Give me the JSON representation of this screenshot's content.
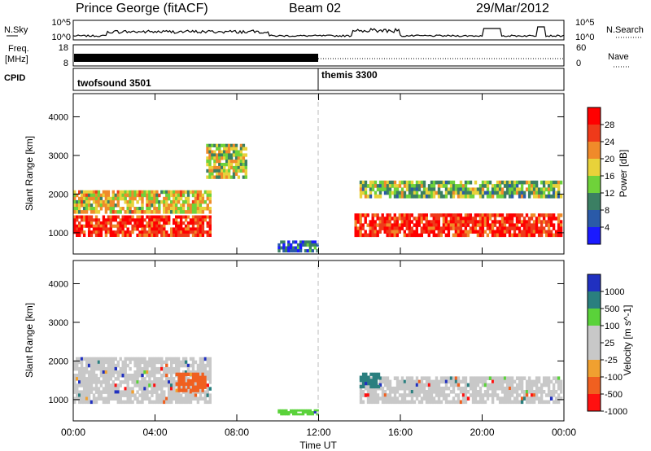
{
  "header": {
    "station": "Prince George (fitACF)",
    "beam": "Beam 02",
    "date": "29/Mar/2012"
  },
  "noise_panel": {
    "left_label": "N.Sky",
    "right_label": "N.Search",
    "left_ticks": [
      "10^5",
      "10^0"
    ],
    "right_ticks": [
      "10^5",
      "10^0"
    ]
  },
  "freq_panel": {
    "left_label_1": "Freq.",
    "left_label_2": "[MHz]",
    "right_label": "Nave",
    "left_ticks": [
      "18",
      "8"
    ],
    "right_ticks": [
      "60",
      "0"
    ]
  },
  "cpid_panel": {
    "label": "CPID",
    "modes": [
      {
        "name": "twofsound 3501",
        "start": "00:00"
      },
      {
        "name": "themis 3300",
        "start": "12:00"
      }
    ]
  },
  "chart_data": [
    {
      "type": "heatmap",
      "name": "power",
      "ylabel": "Slant Range [km]",
      "yticks": [
        1000,
        2000,
        3000,
        4000
      ],
      "ylim": [
        450,
        4600
      ],
      "colorbar_label": "Power [dB]",
      "colorbar_ticks": [
        4,
        8,
        12,
        16,
        20,
        24,
        28
      ],
      "colorbar_range": [
        0,
        32
      ],
      "colors": [
        "#1a1aff",
        "#2a5aa8",
        "#3b7f63",
        "#6fd23a",
        "#e8d23a",
        "#f08a2a",
        "#ef3a1a",
        "#ff0000"
      ],
      "regions_hhmm_km": [
        {
          "t": [
            "00:00",
            "06:45"
          ],
          "range": [
            900,
            1450
          ],
          "value": 28
        },
        {
          "t": [
            "00:00",
            "06:45"
          ],
          "range": [
            1500,
            2100
          ],
          "value": 18
        },
        {
          "t": [
            "13:45",
            "23:55"
          ],
          "range": [
            900,
            1500
          ],
          "value": 28
        },
        {
          "t": [
            "14:00",
            "23:55"
          ],
          "range": [
            1900,
            2350
          ],
          "value": 14
        },
        {
          "t": [
            "06:30",
            "08:30"
          ],
          "range": [
            2400,
            3300
          ],
          "value": 16
        },
        {
          "t": [
            "10:00",
            "12:00"
          ],
          "range": [
            500,
            800
          ],
          "value": 6
        }
      ]
    },
    {
      "type": "heatmap",
      "name": "velocity",
      "ylabel": "Slant Range [km]",
      "yticks": [
        1000,
        2000,
        3000,
        4000
      ],
      "ylim": [
        450,
        4600
      ],
      "colorbar_label": "Velocity [m s^-1]",
      "colorbar_ticks": [
        1000,
        500,
        100,
        25,
        -25,
        -100,
        -500,
        -1000
      ],
      "colors": [
        "#2030c0",
        "#2a7f7f",
        "#5ad23a",
        "#c8c8c8",
        "#c8c8c8",
        "#f0a030",
        "#f06020",
        "#ff1010"
      ],
      "regions_hhmm_km": [
        {
          "t": [
            "00:00",
            "06:45"
          ],
          "range": [
            900,
            2100
          ],
          "value": 0
        },
        {
          "t": [
            "14:00",
            "23:55"
          ],
          "range": [
            900,
            1600
          ],
          "value": 0
        },
        {
          "t": [
            "05:00",
            "06:30"
          ],
          "range": [
            1200,
            1700
          ],
          "value": -400
        },
        {
          "t": [
            "14:00",
            "15:00"
          ],
          "range": [
            1300,
            1700
          ],
          "value": 600
        },
        {
          "t": [
            "10:00",
            "12:00"
          ],
          "range": [
            600,
            750
          ],
          "value": 120
        }
      ]
    }
  ],
  "x_axis": {
    "ticks": [
      "00:00",
      "04:00",
      "08:00",
      "12:00",
      "16:00",
      "20:00",
      "00:00"
    ],
    "label": "Time UT"
  }
}
